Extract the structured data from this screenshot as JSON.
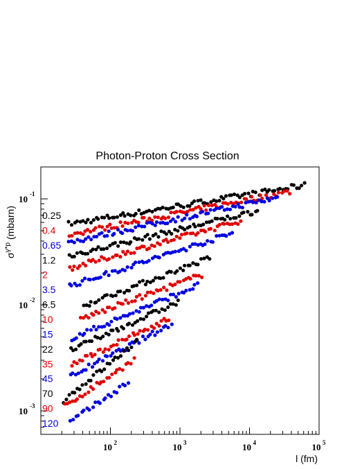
{
  "chart_data": {
    "type": "scatter",
    "title": "Photon-Proton Cross Section",
    "xlabel": "l (fm)",
    "ylabel": "σ^{γ*p} (mbarn)",
    "x_scale": "log",
    "y_scale": "log",
    "xlim": [
      10,
      100000
    ],
    "ylim": [
      0.0006,
      0.2
    ],
    "x_ticks": [
      {
        "value": 100,
        "base": "10",
        "exp": "2"
      },
      {
        "value": 1000,
        "base": "10",
        "exp": "3"
      },
      {
        "value": 10000,
        "base": "10",
        "exp": "4"
      },
      {
        "value": 100000,
        "base": "10",
        "exp": "5"
      }
    ],
    "y_ticks": [
      {
        "value": 0.001,
        "base": "10",
        "exp": "-3"
      },
      {
        "value": 0.01,
        "base": "10",
        "exp": "-2"
      },
      {
        "value": 0.1,
        "base": "10",
        "exp": "-1"
      }
    ],
    "grid": false,
    "legend": "none",
    "series": [
      {
        "label": "0.25",
        "color": "#000000",
        "x_min": 25,
        "x_max": 65000,
        "y_start": 0.058,
        "y_end": 0.135
      },
      {
        "label": "0.4",
        "color": "#e00000",
        "x_min": 25,
        "x_max": 40000,
        "y_start": 0.046,
        "y_end": 0.118
      },
      {
        "label": "0.65",
        "color": "#0000e0",
        "x_min": 25,
        "x_max": 27000,
        "y_start": 0.039,
        "y_end": 0.104
      },
      {
        "label": "1.2",
        "color": "#000000",
        "x_min": 25,
        "x_max": 14000,
        "y_start": 0.029,
        "y_end": 0.078
      },
      {
        "label": "2",
        "color": "#e00000",
        "x_min": 25,
        "x_max": 8000,
        "y_start": 0.022,
        "y_end": 0.063
      },
      {
        "label": "3.5",
        "color": "#0000e0",
        "x_min": 25,
        "x_max": 6000,
        "y_start": 0.015,
        "y_end": 0.048
      },
      {
        "label": "6.5",
        "color": "#000000",
        "x_min": 40,
        "x_max": 2800,
        "y_start": 0.0098,
        "y_end": 0.028
      },
      {
        "label": "10",
        "color": "#e00000",
        "x_min": 36,
        "x_max": 2200,
        "y_start": 0.0073,
        "y_end": 0.0195
      },
      {
        "label": "15",
        "color": "#0000e0",
        "x_min": 27,
        "x_max": 1900,
        "y_start": 0.0048,
        "y_end": 0.0155
      },
      {
        "label": "22",
        "color": "#000000",
        "x_min": 26,
        "x_max": 1000,
        "y_start": 0.0037,
        "y_end": 0.0108
      },
      {
        "label": "35",
        "color": "#e00000",
        "x_min": 27,
        "x_max": 750,
        "y_start": 0.0027,
        "y_end": 0.0076
      },
      {
        "label": "45",
        "color": "#0000e0",
        "x_min": 26,
        "x_max": 800,
        "y_start": 0.0021,
        "y_end": 0.0067
      },
      {
        "label": "70",
        "color": "#000000",
        "x_min": 21,
        "x_max": 260,
        "y_start": 0.00125,
        "y_end": 0.0047
      },
      {
        "label": "90",
        "color": "#e00000",
        "x_min": 21,
        "x_max": 230,
        "y_start": 0.00108,
        "y_end": 0.0031
      },
      {
        "label": "120",
        "color": "#0000e0",
        "x_min": 26,
        "x_max": 190,
        "y_start": 0.00078,
        "y_end": 0.0019
      }
    ]
  }
}
